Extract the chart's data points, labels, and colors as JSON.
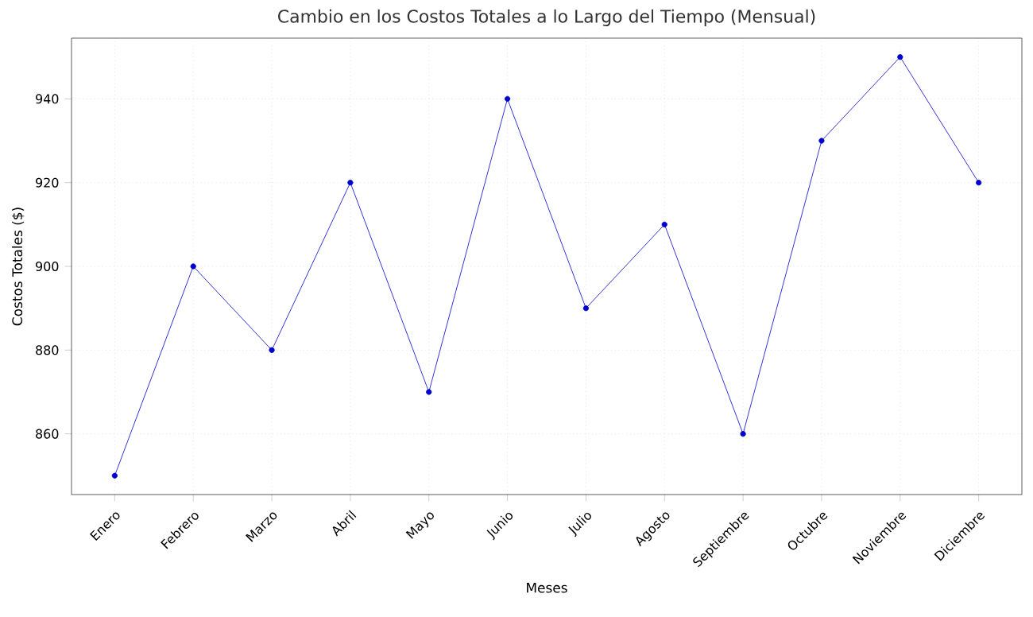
{
  "chart_data": {
    "type": "line",
    "title": "Cambio en los Costos Totales a lo Largo del Tiempo (Mensual)",
    "xlabel": "Meses",
    "ylabel": "Costos Totales ($)",
    "categories": [
      "Enero",
      "Febrero",
      "Marzo",
      "Abril",
      "Mayo",
      "Junio",
      "Julio",
      "Agosto",
      "Septiembre",
      "Octubre",
      "Noviembre",
      "Diciembre"
    ],
    "values": [
      850,
      900,
      880,
      920,
      870,
      940,
      890,
      910,
      860,
      930,
      950,
      920
    ],
    "color": "#0000cc",
    "marker": "circle",
    "line_style": "solid",
    "grid": true,
    "ylim": [
      845.5,
      954.5
    ],
    "yticks": [
      860,
      880,
      900,
      920,
      940
    ]
  }
}
